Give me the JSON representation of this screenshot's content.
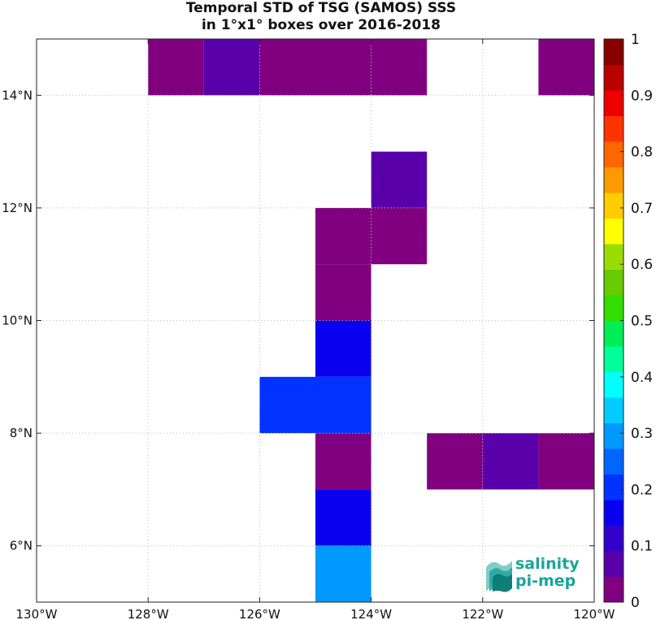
{
  "title": {
    "line1": "Temporal STD of TSG (SAMOS) SSS",
    "line2": "in 1°x1° boxes over 2016-2018"
  },
  "chart_data": {
    "type": "heatmap",
    "xlim": [
      -130,
      -120
    ],
    "ylim": [
      5,
      15
    ],
    "x_ticks": [
      {
        "value": -130,
        "label": "130°W"
      },
      {
        "value": -128,
        "label": "128°W"
      },
      {
        "value": -126,
        "label": "126°W"
      },
      {
        "value": -124,
        "label": "124°W"
      },
      {
        "value": -122,
        "label": "122°W"
      },
      {
        "value": -120,
        "label": "120°W"
      }
    ],
    "y_ticks": [
      {
        "value": 6,
        "label": "6°N"
      },
      {
        "value": 8,
        "label": "8°N"
      },
      {
        "value": 10,
        "label": "10°N"
      },
      {
        "value": 12,
        "label": "12°N"
      },
      {
        "value": 14,
        "label": "14°N"
      }
    ],
    "grid": true,
    "cells": [
      {
        "lon": -128,
        "lat": 14,
        "value": 0.02
      },
      {
        "lon": -127,
        "lat": 14,
        "value": 0.09
      },
      {
        "lon": -126,
        "lat": 14,
        "value": 0.03
      },
      {
        "lon": -125,
        "lat": 14,
        "value": 0.03
      },
      {
        "lon": -124,
        "lat": 14,
        "value": 0.03
      },
      {
        "lon": -121,
        "lat": 14,
        "value": 0.02
      },
      {
        "lon": -124,
        "lat": 12,
        "value": 0.08
      },
      {
        "lon": -125,
        "lat": 11,
        "value": 0.03
      },
      {
        "lon": -124,
        "lat": 11,
        "value": 0.03
      },
      {
        "lon": -125,
        "lat": 10,
        "value": 0.03
      },
      {
        "lon": -125,
        "lat": 9,
        "value": 0.17
      },
      {
        "lon": -126,
        "lat": 8,
        "value": 0.22
      },
      {
        "lon": -125,
        "lat": 8,
        "value": 0.21
      },
      {
        "lon": -125,
        "lat": 7,
        "value": 0.03
      },
      {
        "lon": -123,
        "lat": 7,
        "value": 0.03
      },
      {
        "lon": -122,
        "lat": 7,
        "value": 0.08
      },
      {
        "lon": -121,
        "lat": 7,
        "value": 0.03
      },
      {
        "lon": -125,
        "lat": 6,
        "value": 0.17
      },
      {
        "lon": -125,
        "lat": 5,
        "value": 0.28
      }
    ],
    "colorbar": {
      "range": [
        0,
        1
      ],
      "ticks": [
        {
          "value": 0,
          "label": "0"
        },
        {
          "value": 0.1,
          "label": "0.1"
        },
        {
          "value": 0.2,
          "label": "0.2"
        },
        {
          "value": 0.3,
          "label": "0.3"
        },
        {
          "value": 0.4,
          "label": "0.4"
        },
        {
          "value": 0.5,
          "label": "0.5"
        },
        {
          "value": 0.6,
          "label": "0.6"
        },
        {
          "value": 0.7,
          "label": "0.7"
        },
        {
          "value": 0.8,
          "label": "0.8"
        },
        {
          "value": 0.9,
          "label": "0.9"
        },
        {
          "value": 1,
          "label": "1"
        }
      ],
      "colors": [
        "#800080",
        "#5a00aa",
        "#3300cc",
        "#0a00f0",
        "#0033ff",
        "#0066ff",
        "#0099ff",
        "#00ccff",
        "#00ffff",
        "#00ff99",
        "#00ee55",
        "#33dd00",
        "#66cc00",
        "#99dd00",
        "#ffff00",
        "#ffcc00",
        "#ff9900",
        "#ff6600",
        "#ff3300",
        "#ee0000",
        "#bb0000",
        "#880000"
      ]
    }
  },
  "logo": {
    "line1": "salinity",
    "line2": "pi-mep"
  }
}
